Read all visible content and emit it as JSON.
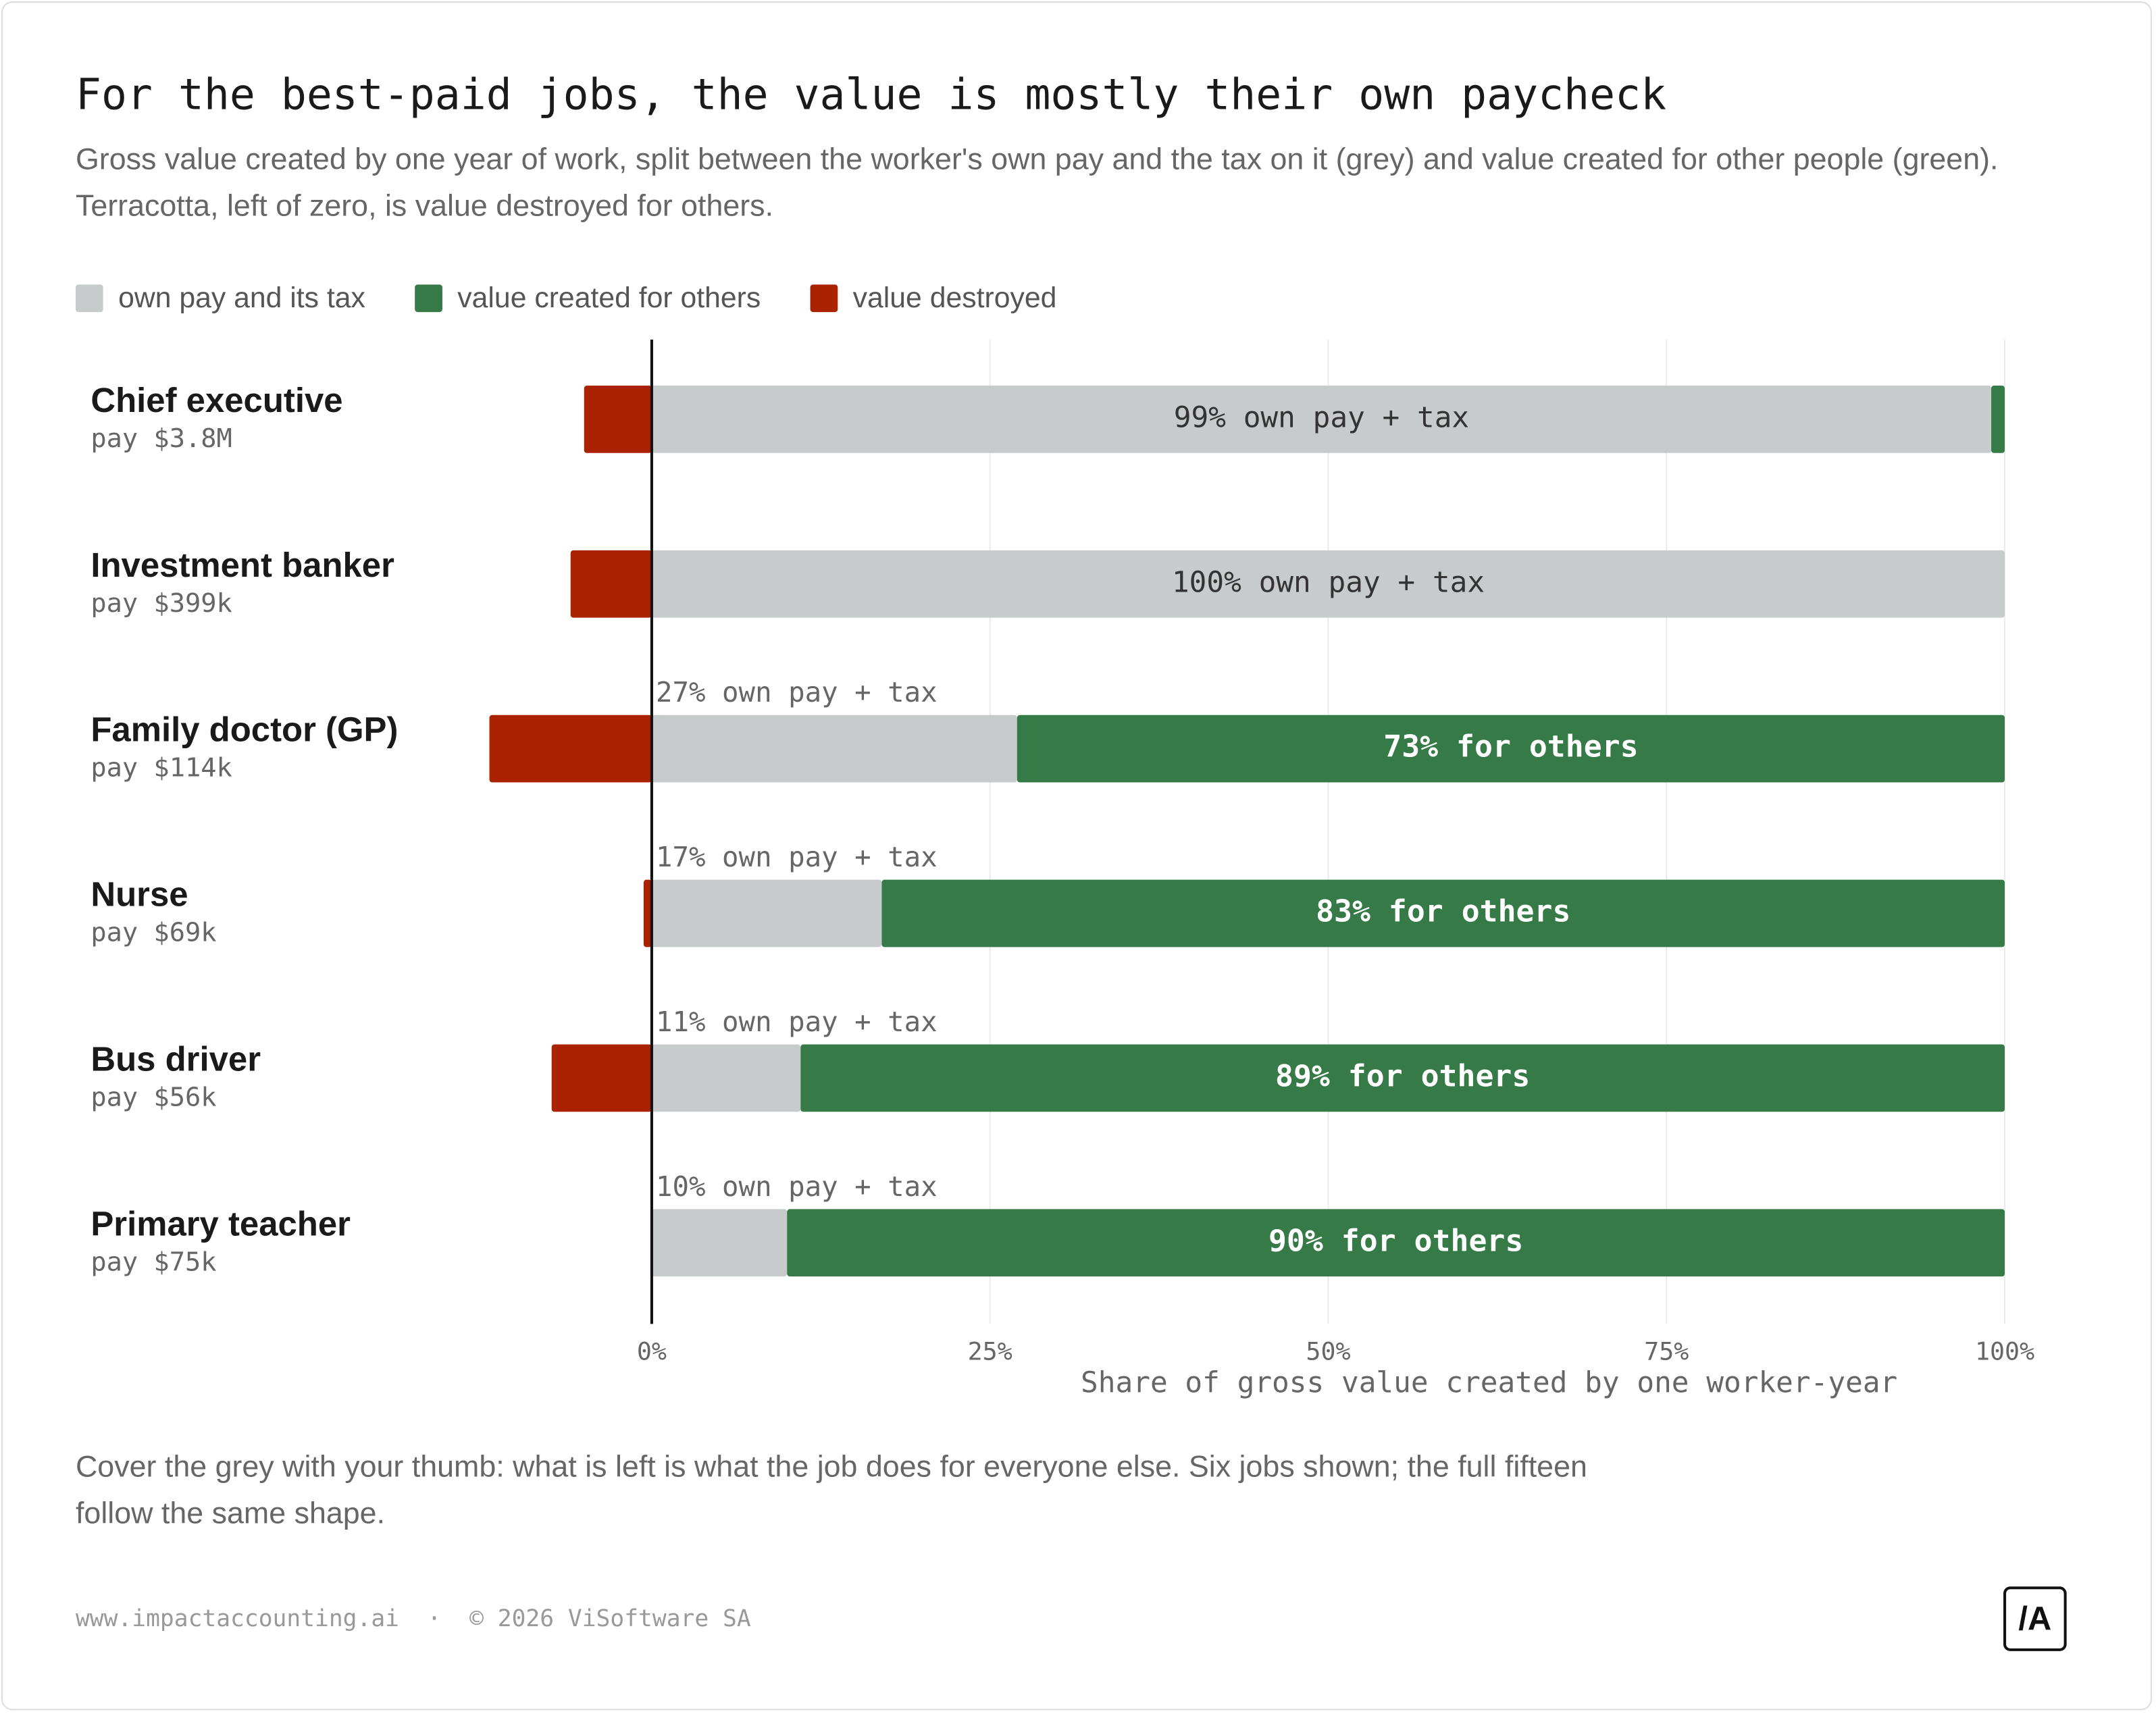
{
  "chart_data": {
    "type": "stacked_barh",
    "title": "For the best-paid jobs, the value is mostly their own paycheck",
    "subtitle": "Gross value created by one year of work, split between the worker's own pay and the tax on it (grey) and value created for other people (green). Terracotta, left of zero, is value destroyed for others.",
    "categories": [
      "Chief executive",
      "Investment banker",
      "Family doctor (GP)",
      "Nurse",
      "Bus driver",
      "Primary teacher"
    ],
    "pay_labels": [
      "pay $3.8M",
      "pay $399k",
      "pay $114k",
      "pay $69k",
      "pay $56k",
      "pay $75k"
    ],
    "series": [
      {
        "name": "own pay and its tax",
        "color": "#c8cbcb",
        "values": [
          99,
          100,
          27,
          17,
          11,
          10
        ],
        "value_labels": [
          "99% own pay + tax",
          "100% own pay + tax",
          "27% own pay + tax",
          "17% own pay + tax",
          "11% own pay + tax",
          "10% own pay + tax"
        ]
      },
      {
        "name": "value created for others",
        "color": "#357a47",
        "values": [
          1,
          0,
          73,
          83,
          89,
          90
        ],
        "value_labels": [
          null,
          null,
          "73% for others",
          "83% for others",
          "89% for others",
          "90% for others"
        ]
      },
      {
        "name": "value destroyed",
        "color": "#aa2200",
        "values": [
          -5,
          -6,
          -12,
          -0.6,
          -7.4,
          0
        ]
      }
    ],
    "xlim": [
      -15,
      100
    ],
    "xticks": [
      {
        "value": 0,
        "label": "0%"
      },
      {
        "value": 25,
        "label": "25%"
      },
      {
        "value": 50,
        "label": "50%"
      },
      {
        "value": 75,
        "label": "75%"
      },
      {
        "value": 100,
        "label": "100%"
      }
    ],
    "xlabel": "Share of gross value created by one worker-year",
    "grid": true,
    "legend": "top",
    "note": "Cover the grey with your thumb: what is left is what the job does for everyone else. Six jobs shown; the full fifteen follow the same shape.",
    "footer": "www.impactaccounting.ai  ·  © 2026 ViSoftware SA",
    "logo": "/A"
  }
}
